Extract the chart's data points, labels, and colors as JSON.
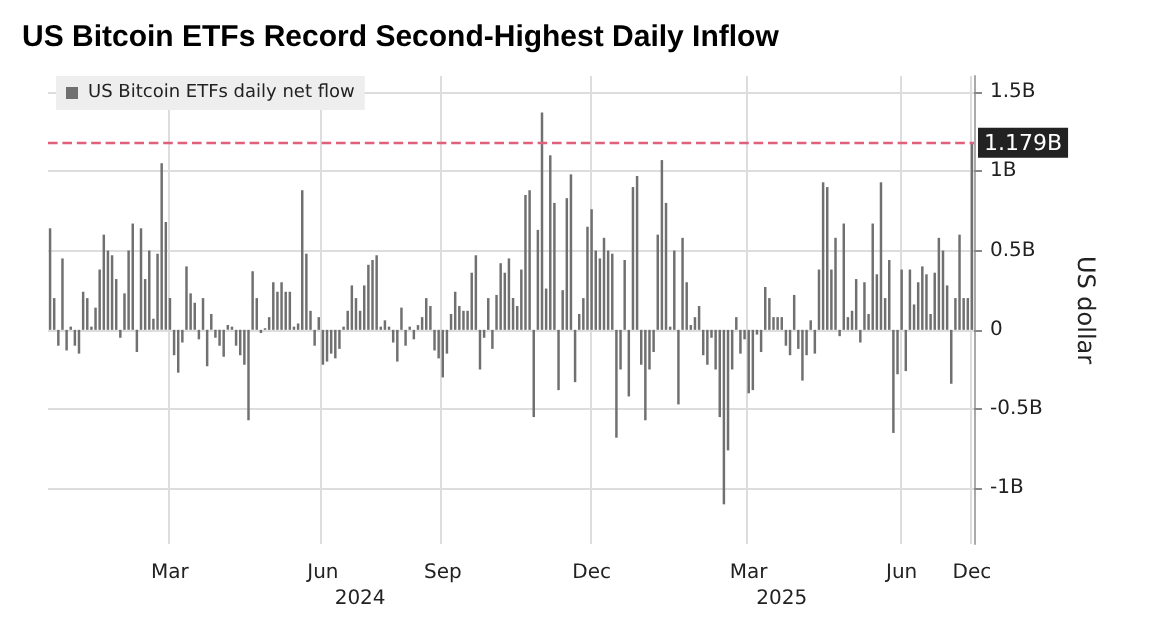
{
  "chart_data": {
    "type": "bar",
    "title": "US Bitcoin ETFs Record Second-Highest Daily Inflow",
    "ylabel": "US dollar",
    "categories": [
      null,
      null,
      null,
      null,
      null,
      null,
      null,
      null,
      null,
      null,
      null,
      null,
      null,
      null,
      null,
      null,
      null,
      null,
      null,
      null,
      null,
      null,
      null,
      null,
      null,
      null,
      null,
      null,
      null,
      "Mar",
      null,
      null,
      null,
      null,
      null,
      null,
      null,
      null,
      null,
      null,
      null,
      null,
      null,
      null,
      null,
      null,
      null,
      null,
      null,
      null,
      null,
      null,
      null,
      null,
      null,
      null,
      null,
      null,
      null,
      null,
      null,
      null,
      null,
      null,
      null,
      null,
      "Jun",
      null,
      null,
      null,
      null,
      null,
      null,
      null,
      null,
      "2024",
      null,
      null,
      null,
      null,
      null,
      null,
      null,
      null,
      null,
      null,
      null,
      null,
      null,
      null,
      null,
      null,
      null,
      null,
      null,
      "Sep",
      null,
      null,
      null,
      null,
      null,
      null,
      null,
      null,
      null,
      null,
      null,
      null,
      null,
      null,
      null,
      null,
      null,
      null,
      null,
      null,
      null,
      null,
      null,
      null,
      null,
      null,
      null,
      null,
      null,
      null,
      null,
      null,
      null,
      null,
      null,
      "Dec",
      null,
      null,
      null,
      null,
      null,
      null,
      null,
      null,
      null,
      null,
      null,
      null,
      null,
      null,
      null,
      null,
      null,
      null,
      null,
      null,
      null,
      null,
      null,
      null,
      null,
      null,
      null,
      null,
      null,
      null,
      null,
      null,
      null,
      null,
      null,
      null,
      null,
      "Mar",
      null,
      null,
      null,
      null,
      null,
      null,
      null,
      "2025",
      null,
      null,
      null,
      null,
      null,
      null,
      null,
      null,
      null,
      null,
      null,
      null,
      null,
      null,
      null,
      null,
      null,
      null,
      null,
      null,
      null,
      null,
      null,
      null,
      null,
      null,
      null,
      null,
      "Jun",
      null,
      null,
      null,
      null,
      null,
      null,
      null,
      null,
      null,
      null,
      null,
      null,
      null,
      null,
      null,
      null,
      "Dec"
    ],
    "series": [
      {
        "name": "US Bitcoin ETFs daily net flow",
        "color": "#707070",
        "values": [
          0.64,
          0.2,
          -0.1,
          0.45,
          -0.13,
          0.02,
          -0.1,
          -0.15,
          0.24,
          0.2,
          0.02,
          0.14,
          0.38,
          0.6,
          0.5,
          0.47,
          0.32,
          -0.05,
          0.23,
          0.5,
          0.67,
          -0.14,
          0.64,
          0.32,
          0.5,
          0.07,
          0.48,
          1.05,
          0.68,
          0.2,
          -0.16,
          -0.27,
          -0.08,
          0.4,
          0.23,
          0.17,
          -0.06,
          0.2,
          -0.23,
          0.1,
          -0.05,
          -0.1,
          -0.17,
          0.03,
          0.02,
          -0.1,
          -0.16,
          -0.22,
          -0.57,
          0.37,
          0.2,
          -0.02,
          0.01,
          0.08,
          0.3,
          0.24,
          0.3,
          0.24,
          0.24,
          0.02,
          0.04,
          0.88,
          0.48,
          0.12,
          -0.1,
          0.08,
          -0.22,
          -0.2,
          -0.15,
          -0.18,
          -0.12,
          0.02,
          0.12,
          0.28,
          0.2,
          0.12,
          0.28,
          0.41,
          0.44,
          0.47,
          0.02,
          0.06,
          0.02,
          -0.08,
          -0.2,
          0.14,
          -0.1,
          0.02,
          -0.06,
          0.03,
          0.08,
          0.2,
          0.15,
          -0.13,
          -0.18,
          -0.3,
          -0.15,
          0.1,
          0.24,
          0.15,
          0.12,
          0.12,
          0.36,
          0.47,
          -0.25,
          -0.05,
          0.2,
          -0.12,
          0.22,
          0.42,
          0.36,
          0.45,
          0.2,
          0.15,
          0.38,
          0.85,
          0.88,
          -0.55,
          0.63,
          1.37,
          0.26,
          1.1,
          0.8,
          -0.38,
          0.25,
          0.83,
          0.98,
          -0.33,
          0.1,
          0.2,
          0.65,
          0.76,
          0.5,
          0.45,
          0.58,
          0.5,
          0.48,
          -0.68,
          -0.25,
          0.44,
          -0.42,
          0.9,
          0.97,
          -0.22,
          -0.57,
          -0.25,
          -0.14,
          0.6,
          1.07,
          0.8,
          0.02,
          0.5,
          -0.47,
          0.58,
          0.3,
          0.03,
          0.08,
          0.15,
          -0.16,
          -0.22,
          -0.05,
          -0.25,
          -0.55,
          -1.1,
          -0.76,
          -0.25,
          0.08,
          -0.15,
          -0.06,
          -0.4,
          -0.38,
          -0.03,
          -0.14,
          0.27,
          0.2,
          0.08,
          0.08,
          0.08,
          -0.1,
          -0.16,
          0.22,
          -0.12,
          -0.32,
          -0.16,
          0.06,
          -0.15,
          0.38,
          0.93,
          0.9,
          0.38,
          0.58,
          -0.04,
          0.67,
          0.08,
          0.12,
          0.32,
          -0.08,
          0.3,
          0.1,
          0.67,
          0.35,
          0.93,
          0.2,
          0.44,
          -0.65,
          -0.28,
          0.38,
          -0.26,
          0.38,
          0.16,
          0.3,
          0.4,
          0.35,
          0.1,
          0.36,
          0.58,
          0.5,
          0.28,
          -0.34,
          0.2,
          0.6,
          0.2,
          0.2,
          1.179
        ]
      }
    ],
    "ylim": [
      -1.35,
      1.6
    ],
    "yticks": [
      {
        "value": -1,
        "label": "-1B"
      },
      {
        "value": -0.5,
        "label": "-0.5B"
      },
      0,
      {
        "value": 0.5,
        "label": "0.5B"
      },
      {
        "value": 1,
        "label": "1B"
      },
      {
        "value": 1.5,
        "label": "1.5B"
      }
    ],
    "ref_lines": [
      {
        "axis": "y",
        "value": 1.179,
        "label": "1.179B",
        "color": "#e0607a",
        "line_style": "dashed"
      }
    ],
    "grid": true,
    "legend": "top left"
  }
}
